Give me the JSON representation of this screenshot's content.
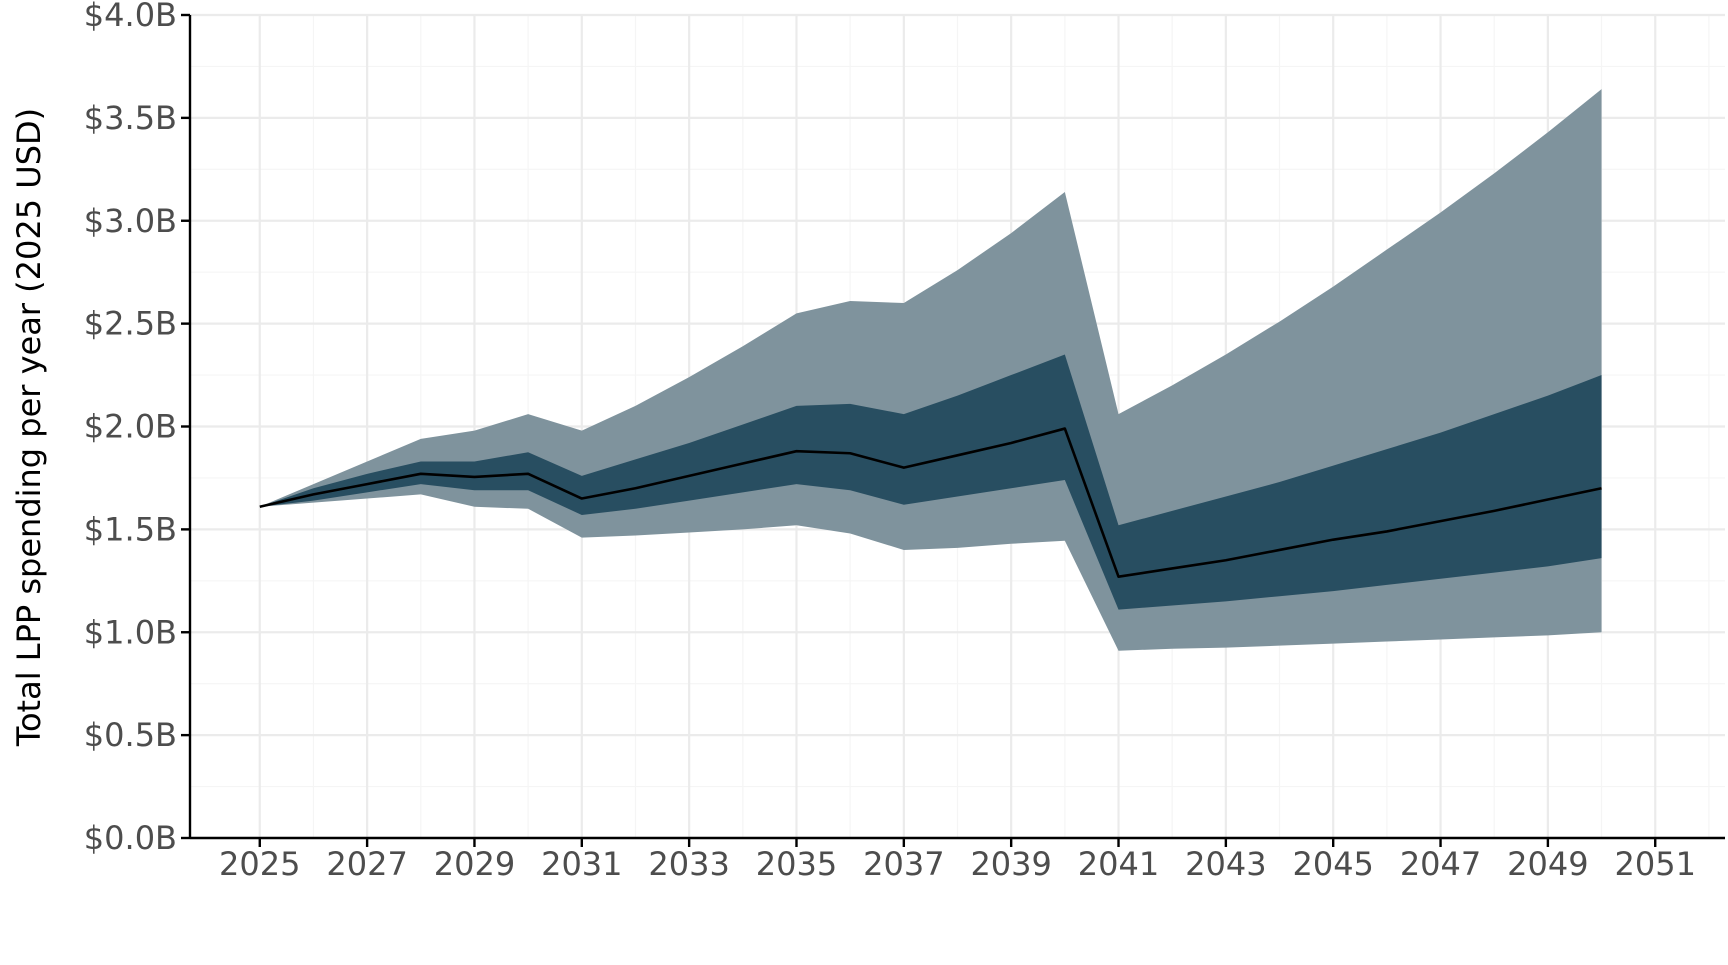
{
  "chart_data": {
    "type": "area",
    "title": "",
    "xlabel": "",
    "ylabel": "Total LPP spending per year (2025 USD)",
    "xlim": [
      2023.7,
      2052.3
    ],
    "ylim": [
      0.0,
      4.0
    ],
    "x_ticks": [
      2025,
      2027,
      2029,
      2031,
      2033,
      2035,
      2037,
      2039,
      2041,
      2043,
      2045,
      2047,
      2049,
      2051
    ],
    "x_tick_labels": [
      "2025",
      "2027",
      "2029",
      "2031",
      "2033",
      "2035",
      "2037",
      "2039",
      "2041",
      "2043",
      "2045",
      "2047",
      "2049",
      "2051"
    ],
    "y_ticks": [
      0.0,
      0.5,
      1.0,
      1.5,
      2.0,
      2.5,
      3.0,
      3.5,
      4.0
    ],
    "y_tick_labels": [
      "$0.0B",
      "$0.5B",
      "$1.0B",
      "$1.5B",
      "$2.0B",
      "$2.5B",
      "$3.0B",
      "$3.5B",
      "$4.0B"
    ],
    "y_minor_ticks": [
      0.25,
      0.75,
      1.25,
      1.75,
      2.25,
      2.75,
      3.25,
      3.75
    ],
    "x_minor_ticks": [
      2026,
      2028,
      2030,
      2032,
      2034,
      2036,
      2038,
      2040,
      2042,
      2044,
      2046,
      2048,
      2050,
      2052
    ],
    "grid": true,
    "legend": "none",
    "x": [
      2025,
      2026,
      2027,
      2028,
      2029,
      2030,
      2031,
      2032,
      2033,
      2034,
      2035,
      2036,
      2037,
      2038,
      2039,
      2040,
      2041,
      2042,
      2043,
      2044,
      2045,
      2046,
      2047,
      2048,
      2049,
      2050
    ],
    "median": [
      1.61,
      1.67,
      1.72,
      1.77,
      1.755,
      1.77,
      1.65,
      1.7,
      1.76,
      1.82,
      1.88,
      1.87,
      1.8,
      1.86,
      1.92,
      1.99,
      1.27,
      1.31,
      1.35,
      1.4,
      1.45,
      1.49,
      1.54,
      1.59,
      1.645,
      1.7
    ],
    "inner_band": {
      "lower": [
        1.61,
        1.64,
        1.68,
        1.72,
        1.69,
        1.69,
        1.57,
        1.6,
        1.64,
        1.68,
        1.72,
        1.69,
        1.62,
        1.66,
        1.7,
        1.74,
        1.11,
        1.13,
        1.15,
        1.175,
        1.2,
        1.23,
        1.26,
        1.29,
        1.32,
        1.36
      ],
      "upper": [
        1.61,
        1.7,
        1.77,
        1.83,
        1.83,
        1.875,
        1.76,
        1.84,
        1.92,
        2.01,
        2.1,
        2.11,
        2.06,
        2.15,
        2.25,
        2.35,
        1.52,
        1.59,
        1.66,
        1.73,
        1.81,
        1.89,
        1.97,
        2.06,
        2.15,
        2.25
      ]
    },
    "outer_band": {
      "lower": [
        1.61,
        1.63,
        1.65,
        1.67,
        1.61,
        1.6,
        1.46,
        1.47,
        1.485,
        1.5,
        1.52,
        1.48,
        1.4,
        1.41,
        1.43,
        1.445,
        0.91,
        0.92,
        0.925,
        0.935,
        0.945,
        0.955,
        0.965,
        0.975,
        0.985,
        1.0
      ],
      "upper": [
        1.61,
        1.72,
        1.83,
        1.94,
        1.98,
        2.06,
        1.98,
        2.1,
        2.24,
        2.39,
        2.55,
        2.61,
        2.6,
        2.76,
        2.94,
        3.14,
        2.06,
        2.2,
        2.35,
        2.51,
        2.68,
        2.86,
        3.04,
        3.23,
        3.43,
        3.64
      ]
    },
    "colors": {
      "outer_band": "#7f939d",
      "inner_band": "#284e61",
      "median": "#000000",
      "grid_major": "#ebebeb",
      "grid_minor": "#f5f5f5",
      "axis": "#000000",
      "tick_label": "#4d4d4d"
    }
  }
}
